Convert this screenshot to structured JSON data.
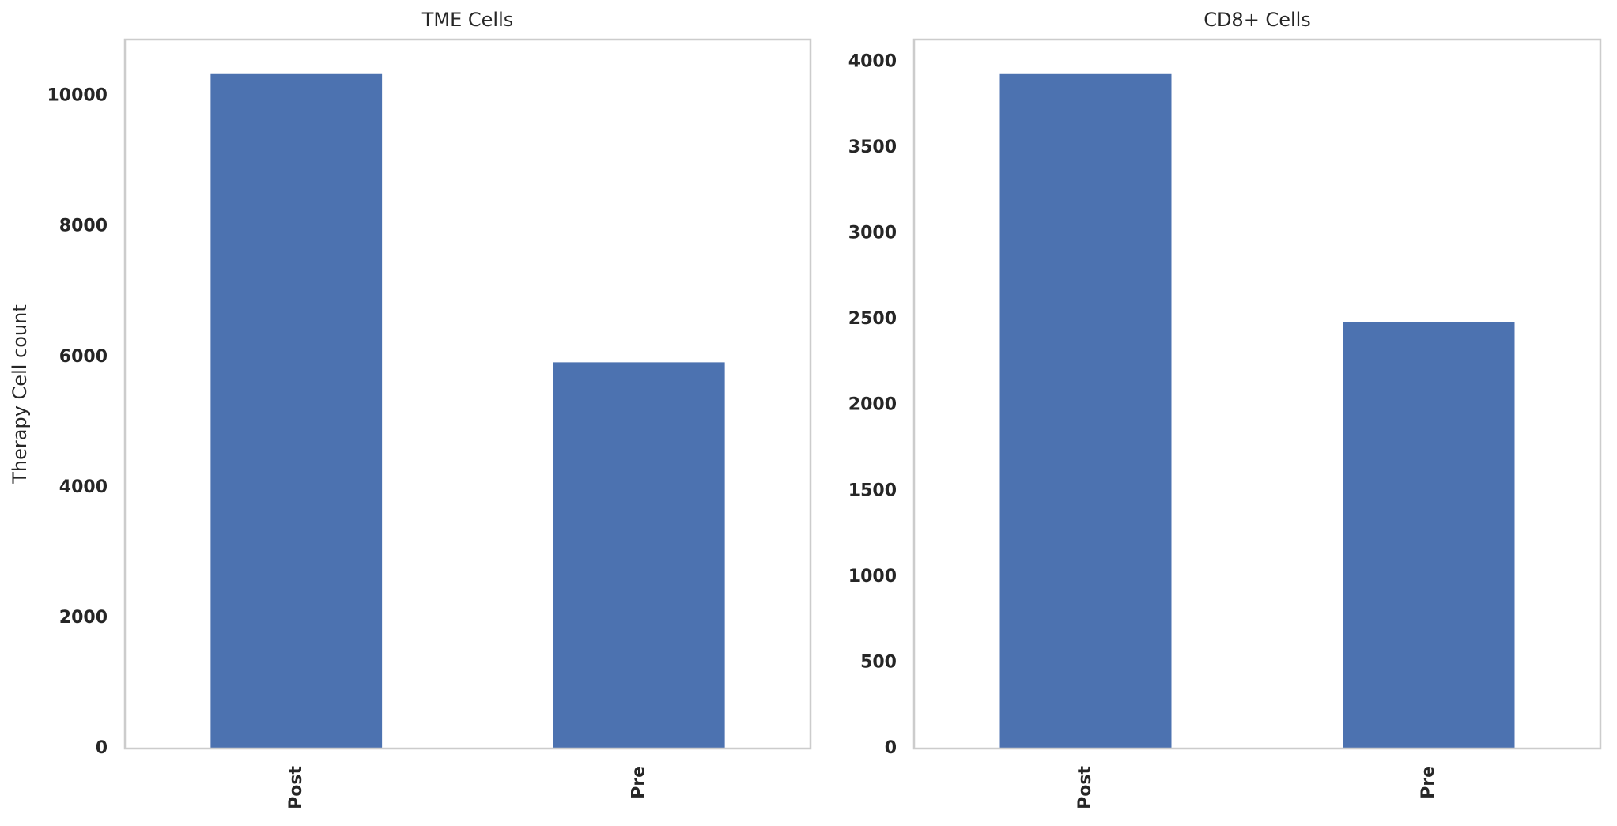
{
  "chart_data": [
    {
      "type": "bar",
      "title": "TME Cells",
      "ylabel": "Therapy Cell count",
      "categories": [
        "Post",
        "Pre"
      ],
      "values": [
        10350,
        5920
      ],
      "color": "#4c72b0",
      "ylim": [
        0,
        10868
      ],
      "yticks": [
        0,
        2000,
        4000,
        6000,
        8000,
        10000
      ],
      "grid": false
    },
    {
      "type": "bar",
      "title": "CD8+ Cells",
      "categories": [
        "Post",
        "Pre"
      ],
      "values": [
        3934,
        2484
      ],
      "color": "#4c72b0",
      "ylim": [
        0,
        4131
      ],
      "yticks": [
        0,
        500,
        1000,
        1500,
        2000,
        2500,
        3000,
        3500,
        4000
      ],
      "grid": false
    }
  ]
}
